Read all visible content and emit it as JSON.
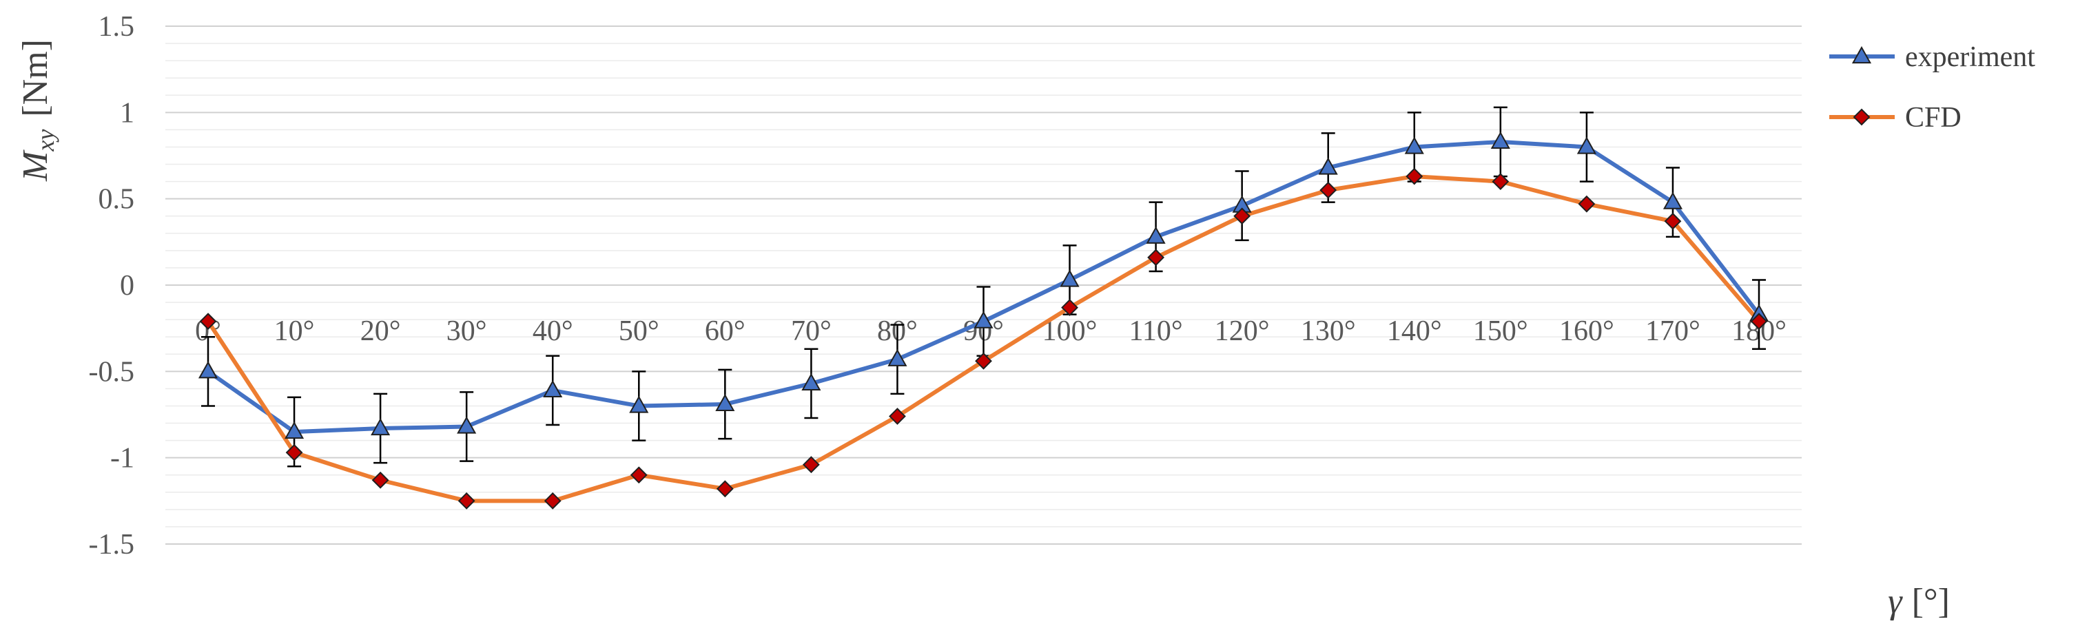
{
  "chart_data": {
    "type": "line",
    "title": "",
    "ylabel": {
      "main": "M",
      "sub": "xy",
      "unit": "[Nm]"
    },
    "xlabel": {
      "symbol": "γ",
      "unit": "[°]"
    },
    "ylim": [
      -1.5,
      1.5
    ],
    "yticks": [
      -1.5,
      -1,
      -0.5,
      0,
      0.5,
      1,
      1.5
    ],
    "ytick_labels": [
      "-1.5",
      "-1",
      "-0.5",
      "0",
      "0.5",
      "1",
      "1.5"
    ],
    "minor_grid_step": 0.1,
    "grid": true,
    "legend_position": "right-top",
    "categories": [
      "0°",
      "10°",
      "20°",
      "30°",
      "40°",
      "50°",
      "60°",
      "70°",
      "80°",
      "90°",
      "100°",
      "110°",
      "120°",
      "130°",
      "140°",
      "150°",
      "160°",
      "170°",
      "180°"
    ],
    "series": [
      {
        "name": "experiment",
        "color": "#4472C4",
        "marker": "triangle",
        "marker_color": "#4472C4",
        "values": [
          -0.5,
          -0.85,
          -0.83,
          -0.82,
          -0.61,
          -0.7,
          -0.69,
          -0.57,
          -0.43,
          -0.21,
          0.03,
          0.28,
          0.46,
          0.68,
          0.8,
          0.83,
          0.8,
          0.48,
          -0.17
        ],
        "error": 0.2
      },
      {
        "name": "CFD",
        "color": "#ED7D31",
        "marker": "diamond",
        "marker_color": "#C00000",
        "values": [
          -0.21,
          -0.97,
          -1.13,
          -1.25,
          -1.25,
          -1.1,
          -1.18,
          -1.04,
          -0.76,
          -0.44,
          -0.13,
          0.16,
          0.4,
          0.55,
          0.63,
          0.6,
          0.47,
          0.37,
          -0.21
        ]
      }
    ]
  }
}
